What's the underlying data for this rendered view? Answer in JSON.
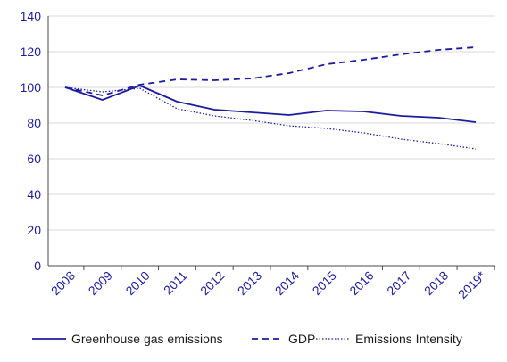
{
  "chart_data": {
    "type": "line",
    "title": "",
    "xlabel": "",
    "ylabel": "",
    "x": [
      "2008",
      "2009",
      "2010",
      "2011",
      "2012",
      "2013",
      "2014",
      "2015",
      "2016",
      "2017",
      "2018",
      "2019*"
    ],
    "ylim": [
      0,
      140
    ],
    "yticks": [
      0,
      20,
      40,
      60,
      80,
      100,
      120,
      140
    ],
    "grid": "horizontal",
    "legend_position": "bottom",
    "series": [
      {
        "name": "Greenhouse gas emissions",
        "style": "solid",
        "color": "#1c1c9c",
        "values": [
          100,
          93,
          101,
          92,
          87.5,
          86,
          84.5,
          87,
          86.5,
          84,
          83,
          80.5
        ]
      },
      {
        "name": "GDP",
        "style": "dashed",
        "color": "#1c1c9c",
        "values": [
          100,
          95.5,
          101.5,
          104.5,
          104,
          105,
          108,
          113,
          115.5,
          118.5,
          121,
          122.5
        ]
      },
      {
        "name": "Emissions Intensity",
        "style": "dotted",
        "color": "#1c1c9c",
        "values": [
          100,
          97.5,
          99.5,
          88,
          84,
          81.5,
          78.5,
          77,
          74.5,
          71,
          68.5,
          65.5
        ]
      }
    ],
    "colors": {
      "line": "#1c1c9c",
      "tick_text": "#1c1c9c",
      "grid": "#d9d9d9",
      "axis": "#4a4a4a"
    }
  }
}
